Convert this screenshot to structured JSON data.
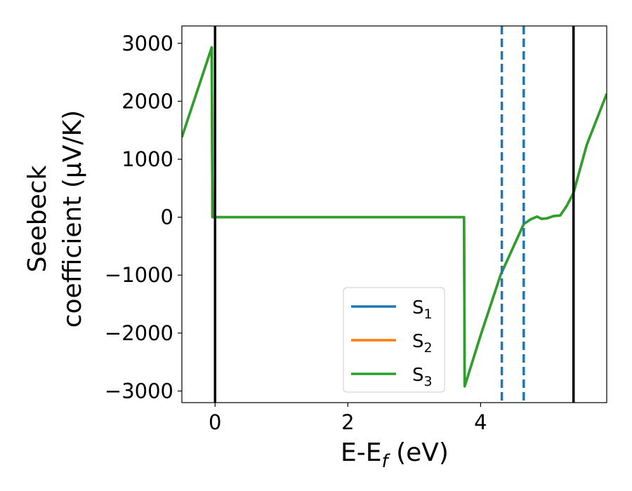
{
  "chart_data": {
    "type": "line",
    "xlabel": "E-E",
    "xlabel_sub": "f",
    "xlabel_unit": " (eV)",
    "ylabel_line1": "Seebeck",
    "ylabel_line2": "coefficient  (μV/K)",
    "xlim": [
      -0.5,
      5.9
    ],
    "ylim": [
      -3200,
      3300
    ],
    "xticks": [
      0,
      2,
      4
    ],
    "xtick_labels": [
      "0",
      "2",
      "4"
    ],
    "yticks": [
      3000,
      2000,
      1000,
      0,
      -1000,
      -2000,
      -3000
    ],
    "ytick_labels": [
      "3000",
      "2000",
      "1000",
      "0",
      "−1000",
      "−2000",
      "−3000"
    ],
    "grid": false,
    "legend_position": "lower-right",
    "series": [
      {
        "name": "S",
        "sub": "1",
        "color": "#1f77b4",
        "x": [
          -0.5,
          -0.05,
          -0.04,
          3.75,
          3.76,
          4.0,
          4.3,
          4.65,
          4.75,
          4.85,
          4.92,
          5.0,
          5.1,
          5.2,
          5.3,
          5.4,
          5.6,
          5.9
        ],
        "y": [
          1380,
          2930,
          0,
          0,
          -2920,
          -2040,
          -1000,
          -120,
          -40,
          10,
          -30,
          -20,
          20,
          30,
          200,
          420,
          1250,
          2130
        ]
      },
      {
        "name": "S",
        "sub": "2",
        "color": "#ff7f0e",
        "x": [
          -0.5,
          -0.05,
          -0.04,
          3.75,
          3.76,
          4.0,
          4.3,
          4.65,
          4.75,
          4.85,
          4.92,
          5.0,
          5.1,
          5.2,
          5.3,
          5.4,
          5.6,
          5.9
        ],
        "y": [
          1380,
          2930,
          0,
          0,
          -2920,
          -2040,
          -1000,
          -120,
          -40,
          10,
          -30,
          -20,
          20,
          30,
          200,
          420,
          1250,
          2130
        ]
      },
      {
        "name": "S",
        "sub": "3",
        "color": "#2ca02c",
        "x": [
          -0.5,
          -0.05,
          -0.04,
          3.75,
          3.76,
          4.0,
          4.3,
          4.65,
          4.75,
          4.85,
          4.92,
          5.0,
          5.1,
          5.2,
          5.3,
          5.4,
          5.6,
          5.9
        ],
        "y": [
          1380,
          2930,
          0,
          0,
          -2920,
          -2040,
          -1000,
          -120,
          -40,
          10,
          -30,
          -20,
          20,
          30,
          200,
          420,
          1250,
          2130
        ]
      }
    ],
    "vlines_solid": {
      "x": [
        0.0,
        5.4
      ],
      "color": "#000000"
    },
    "vlines_dashed": {
      "x": [
        4.32,
        4.65
      ],
      "color": "#1f77b4"
    }
  }
}
